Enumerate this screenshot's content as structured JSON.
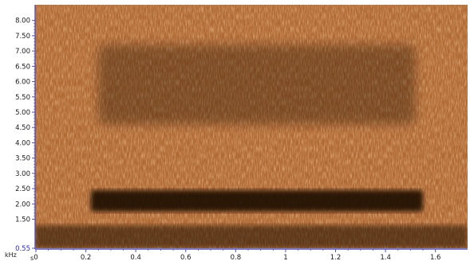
{
  "chart_data": {
    "type": "heatmap",
    "subtype": "spectrogram",
    "title": "",
    "xlabel": "s",
    "ylabel": "kHz",
    "xlim": [
      0,
      1.7
    ],
    "ylim": [
      0.55,
      8.2
    ],
    "x_ticks": [
      0,
      0.2,
      0.4,
      0.6,
      0.8,
      1,
      1.2,
      1.4,
      1.6
    ],
    "x_tick_labels": [
      "0",
      "0.2",
      "0.4",
      "0.6",
      "0.8",
      "1",
      "1.2",
      "1.4",
      "1.6"
    ],
    "y_ticks": [
      0.55,
      1.5,
      2.0,
      2.5,
      3.0,
      3.5,
      4.0,
      4.5,
      5.0,
      5.5,
      6.0,
      6.5,
      7.0,
      7.5,
      8.0
    ],
    "y_tick_labels": [
      "0.55",
      "1.50",
      "2.00",
      "2.50",
      "3.00",
      "3.50",
      "4.00",
      "4.50",
      "5.00",
      "5.50",
      "6.00",
      "6.50",
      "7.00",
      "7.50",
      "8.00"
    ],
    "grid": false,
    "colormap": "copper",
    "colors": {
      "background_energy": "#b06a35",
      "bright_noise": "#e8a060",
      "dark_band": "#1a0a04",
      "axis": "#5050c8",
      "axis_label_accent": "#2a2ad8"
    },
    "dark_regions": [
      {
        "label": "",
        "time_start": 0.22,
        "time_end": 1.55,
        "freq_low": 1.75,
        "freq_high": 2.45
      },
      {
        "label": "",
        "time_start": 0.25,
        "time_end": 1.52,
        "freq_low": 4.6,
        "freq_high": 7.2
      }
    ]
  }
}
